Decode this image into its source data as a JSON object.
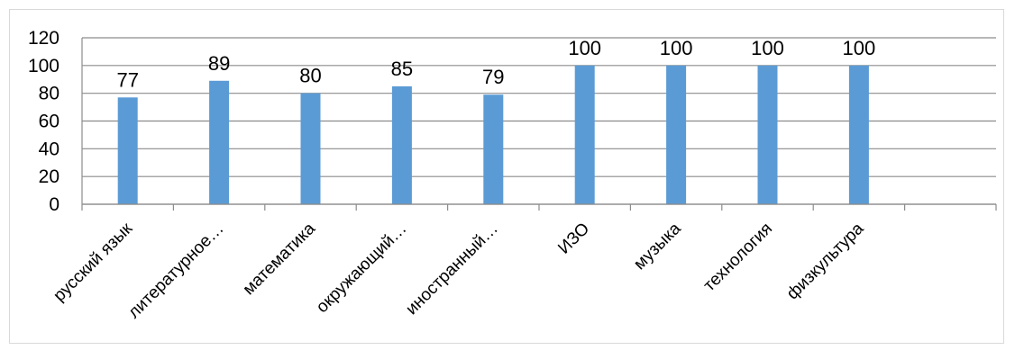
{
  "chart_data": {
    "type": "bar",
    "categories": [
      "русский язык",
      "литературное…",
      "математика",
      "окружающий…",
      "иностранный…",
      "ИЗО",
      "музыка",
      "технология",
      "физкультура",
      ""
    ],
    "values": [
      77,
      89,
      80,
      85,
      79,
      100,
      100,
      100,
      100,
      null
    ],
    "data_labels": [
      "77",
      "89",
      "80",
      "85",
      "79",
      "100",
      "100",
      "100",
      "100",
      ""
    ],
    "yticks": [
      "0",
      "20",
      "40",
      "60",
      "80",
      "100",
      "120"
    ],
    "ylim": [
      0,
      120
    ],
    "grid": true,
    "legend": "none",
    "bar_color": "#5b9bd5",
    "grid_color": "#8c8c8c"
  }
}
